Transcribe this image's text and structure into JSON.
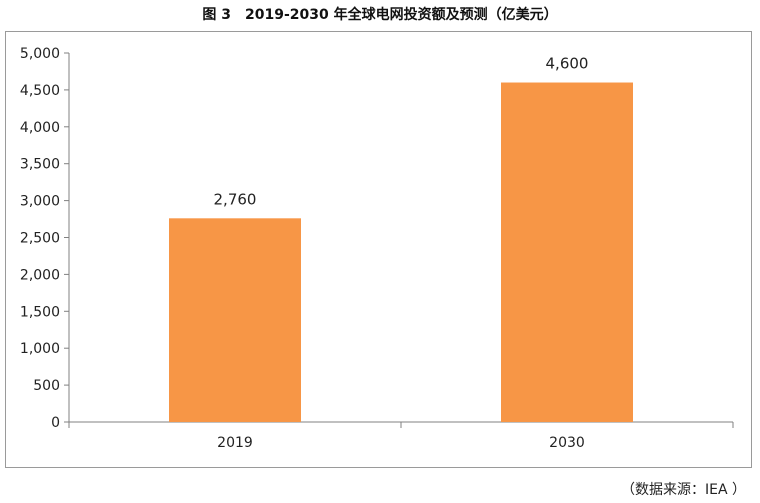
{
  "title": "图 3　2019-2030 年全球电网投资额及预测（亿美元）",
  "source": "（数据来源：IEA ）",
  "colors": {
    "bar": "#F79646",
    "axis": "#808080",
    "frame": "#9a9a9a"
  },
  "chart_data": {
    "type": "bar",
    "title": "图 3　2019-2030 年全球电网投资额及预测（亿美元）",
    "categories": [
      "2019",
      "2030"
    ],
    "values": [
      2760,
      4600
    ],
    "data_labels": [
      "2,760",
      "4,600"
    ],
    "xlabel": "",
    "ylabel": "",
    "ylim": [
      0,
      5000
    ],
    "yticks": [
      0,
      500,
      1000,
      1500,
      2000,
      2500,
      3000,
      3500,
      4000,
      4500,
      5000
    ],
    "ytick_labels": [
      "0",
      "500",
      "1,000",
      "1,500",
      "2,000",
      "2,500",
      "3,000",
      "3,500",
      "4,000",
      "4,500",
      "5,000"
    ],
    "grid": false,
    "legend": "none"
  }
}
